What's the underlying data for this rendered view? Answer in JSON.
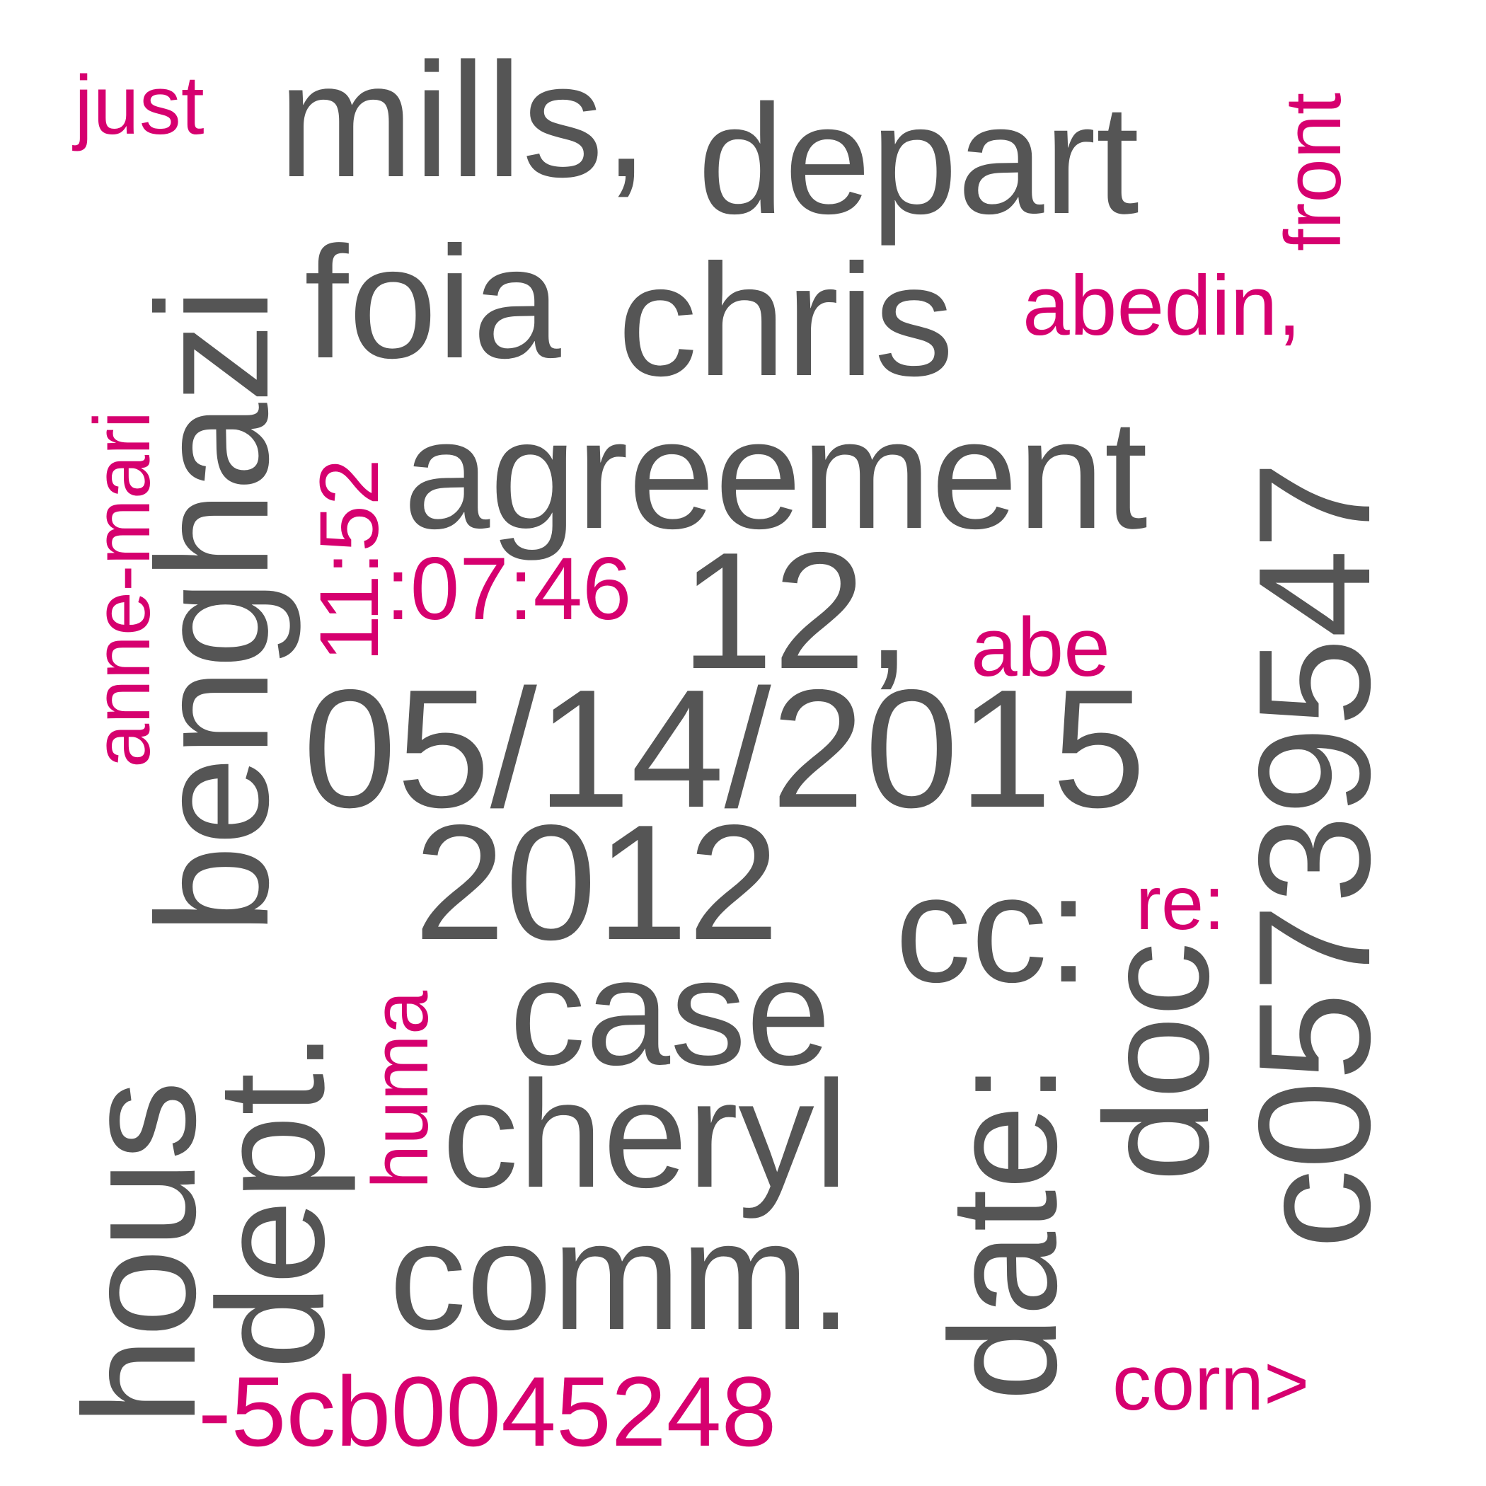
{
  "colors": {
    "primary": "#555555",
    "accent": "#d6006f",
    "background": "#ffffff"
  },
  "words": [
    {
      "text": "mills,",
      "color": "primary"
    },
    {
      "text": "depart",
      "color": "primary"
    },
    {
      "text": "foia",
      "color": "primary"
    },
    {
      "text": "chris",
      "color": "primary"
    },
    {
      "text": "agreement",
      "color": "primary"
    },
    {
      "text": "12,",
      "color": "primary"
    },
    {
      "text": "05/14/2015",
      "color": "primary"
    },
    {
      "text": "2012",
      "color": "primary"
    },
    {
      "text": "cc:",
      "color": "primary"
    },
    {
      "text": "case",
      "color": "primary"
    },
    {
      "text": "cheryl",
      "color": "primary"
    },
    {
      "text": "comm.",
      "color": "primary"
    },
    {
      "text": "benghazi",
      "color": "primary"
    },
    {
      "text": "dept.",
      "color": "primary"
    },
    {
      "text": "hous",
      "color": "primary"
    },
    {
      "text": "date:",
      "color": "primary"
    },
    {
      "text": "doc",
      "color": "primary"
    },
    {
      "text": "c05739547",
      "color": "primary"
    },
    {
      "text": "just",
      "color": "accent"
    },
    {
      "text": "front",
      "color": "accent"
    },
    {
      "text": "abedin,",
      "color": "accent"
    },
    {
      "text": "anne-mari",
      "color": "accent"
    },
    {
      "text": "11:52",
      "color": "accent"
    },
    {
      "text": ":07:46",
      "color": "accent"
    },
    {
      "text": "abe",
      "color": "accent"
    },
    {
      "text": "re:",
      "color": "accent"
    },
    {
      "text": "huma",
      "color": "accent"
    },
    {
      "text": "-5cb0045248",
      "color": "accent"
    },
    {
      "text": "corn>",
      "color": "accent"
    }
  ]
}
